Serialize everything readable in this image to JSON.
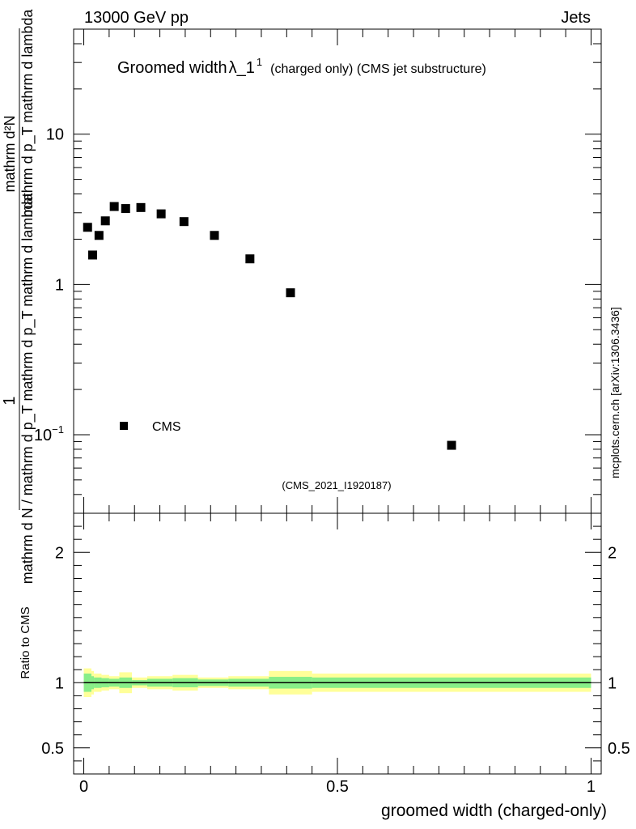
{
  "header": {
    "left": "13000 GeV pp",
    "right": "Jets"
  },
  "title": {
    "main": "Groomed width",
    "symbol": "λ_1",
    "superscript": "1",
    "suffix": "(charged only) (CMS jet substructure)"
  },
  "analysis_label": "(CMS_2021_I1920187)",
  "watermark": "mcplots.cern.ch [arXiv:1306.3436]",
  "legend": {
    "entries": [
      {
        "label": "CMS",
        "marker": "square"
      }
    ]
  },
  "ylabel": {
    "numerator": "1",
    "denominator": "mathrm d N / mathrm d p_T mathrm d p_T mathrm d lambda",
    "top_numerator": "mathrm d²N",
    "top_denominator": "mathrm d p_T mathrm d lambda"
  },
  "ratio_ylabel": "Ratio to CMS",
  "xlabel": "groomed width (charged-only)",
  "colors": {
    "marker": "#000000",
    "band_outer": "#ffff99",
    "band_inner": "#88ee88",
    "axis": "#000000",
    "analysis_label": "#999999",
    "watermark": "#666666"
  },
  "chart_data": [
    {
      "type": "scatter",
      "panel": "main",
      "yscale": "log",
      "xlim": [
        -0.02,
        1.02
      ],
      "ylim": [
        0.03,
        50
      ],
      "ytick_labels": [
        "10^-1",
        "1",
        "10"
      ],
      "series": [
        {
          "name": "CMS",
          "x": [
            0.0075,
            0.0175,
            0.03,
            0.0425,
            0.06,
            0.0825,
            0.1125,
            0.1525,
            0.1975,
            0.2575,
            0.3275,
            0.4075,
            0.725
          ],
          "y": [
            2.4,
            1.57,
            2.12,
            2.65,
            3.3,
            3.2,
            3.25,
            2.95,
            2.62,
            2.12,
            1.48,
            0.88,
            0.085
          ]
        }
      ]
    },
    {
      "type": "area",
      "panel": "ratio",
      "xlim": [
        -0.02,
        1.02
      ],
      "ylim": [
        0.3,
        2.3
      ],
      "xtick_labels": [
        "0",
        "0.5",
        "1"
      ],
      "ytick_labels": [
        "0.5",
        "1",
        "2"
      ],
      "reference": 1,
      "bins": [
        0.0,
        0.015,
        0.02,
        0.035,
        0.05,
        0.07,
        0.095,
        0.125,
        0.175,
        0.225,
        0.285,
        0.365,
        0.45,
        1.0
      ],
      "series": [
        {
          "name": "total",
          "lo": [
            0.89,
            0.91,
            0.93,
            0.94,
            0.95,
            0.92,
            0.96,
            0.95,
            0.94,
            0.96,
            0.95,
            0.91,
            0.93
          ],
          "hi": [
            1.11,
            1.09,
            1.07,
            1.06,
            1.05,
            1.08,
            1.04,
            1.05,
            1.06,
            1.04,
            1.05,
            1.09,
            1.07
          ]
        },
        {
          "name": "stat",
          "lo": [
            0.93,
            0.95,
            0.96,
            0.965,
            0.97,
            0.96,
            0.98,
            0.97,
            0.965,
            0.975,
            0.97,
            0.955,
            0.96
          ],
          "hi": [
            1.07,
            1.05,
            1.04,
            1.035,
            1.03,
            1.04,
            1.02,
            1.03,
            1.035,
            1.025,
            1.03,
            1.045,
            1.04
          ]
        }
      ]
    }
  ]
}
